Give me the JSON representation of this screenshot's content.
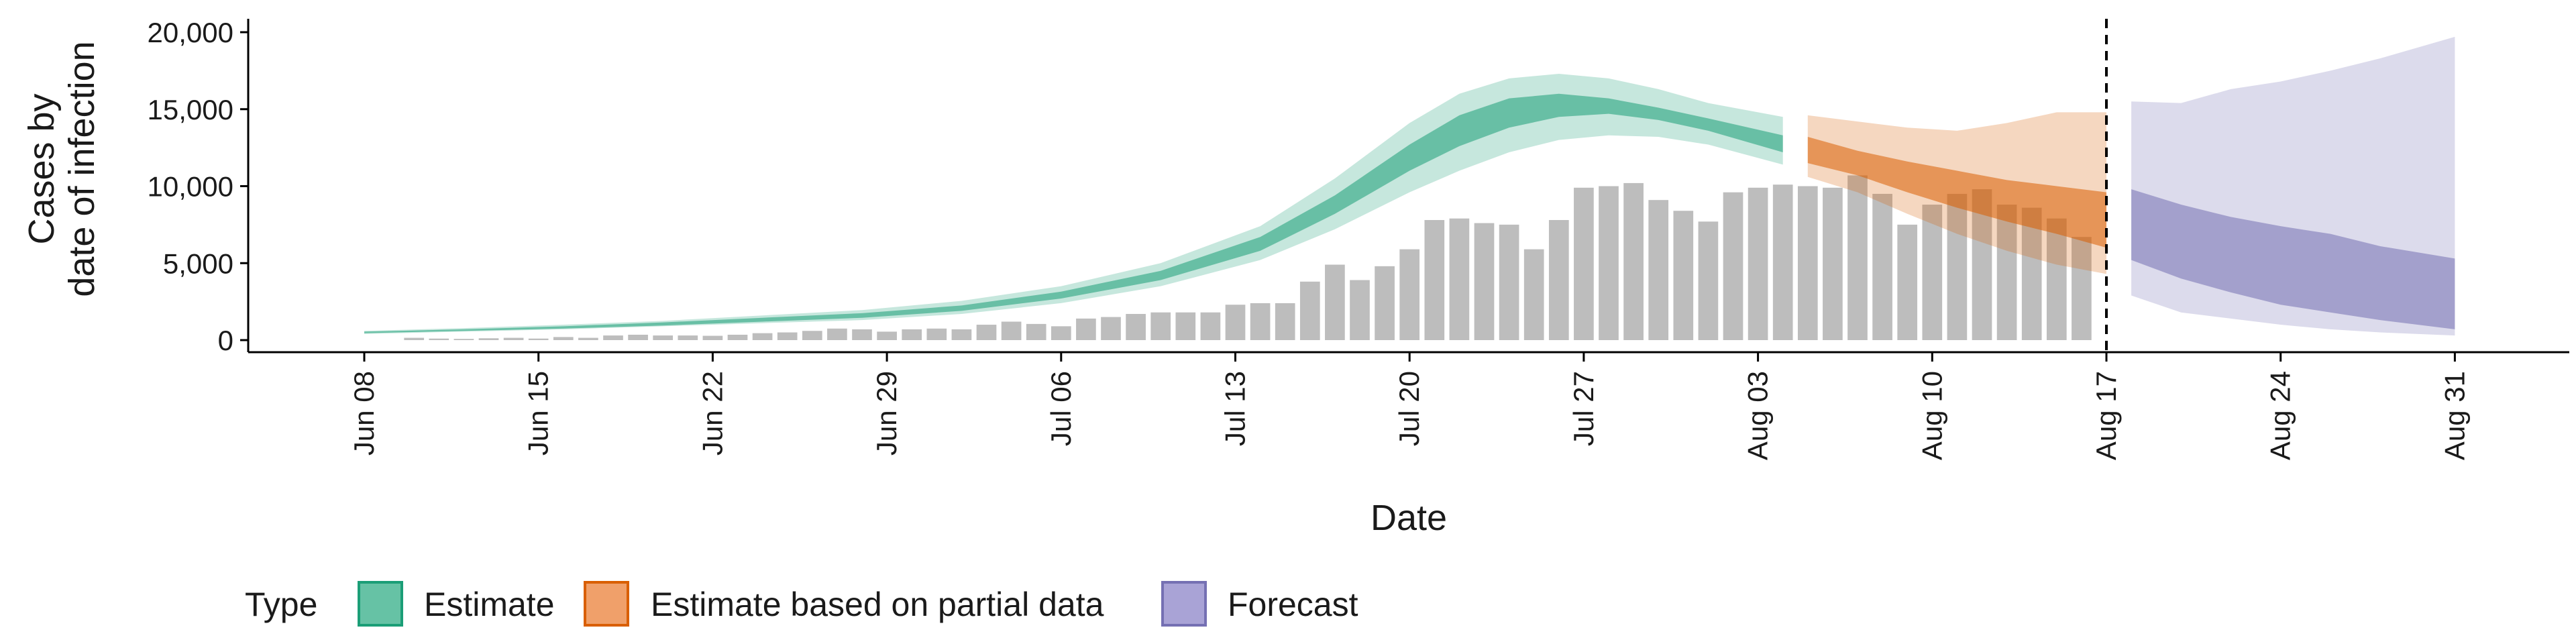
{
  "chart_data": {
    "type": "bar",
    "xlabel": "Date",
    "ylabel_lines": [
      "Cases by",
      "date of infection"
    ],
    "ylim": [
      0,
      20000
    ],
    "y_ticks": [
      0,
      5000,
      10000,
      15000,
      20000
    ],
    "y_tick_labels": [
      "0",
      "5,000",
      "10,000",
      "15,000",
      "20,000"
    ],
    "x_ticks": [
      "2020-06-08",
      "2020-06-15",
      "2020-06-22",
      "2020-06-29",
      "2020-07-06",
      "2020-07-13",
      "2020-07-20",
      "2020-07-27",
      "2020-08-03",
      "2020-08-10",
      "2020-08-17",
      "2020-08-24",
      "2020-08-31"
    ],
    "x_tick_labels": [
      "Jun 08",
      "Jun 15",
      "Jun 22",
      "Jun 29",
      "Jul 06",
      "Jul 13",
      "Jul 20",
      "Jul 27",
      "Aug 03",
      "Aug 10",
      "Aug 17",
      "Aug 24",
      "Aug 31"
    ],
    "vline_date": "2020-08-17",
    "bars_start_date": "2020-06-10",
    "bar_color": "#bdbdbd",
    "bars": [
      150,
      100,
      80,
      120,
      150,
      100,
      200,
      150,
      300,
      350,
      300,
      300,
      280,
      350,
      450,
      500,
      600,
      750,
      700,
      550,
      700,
      750,
      700,
      1000,
      1200,
      1050,
      900,
      1400,
      1500,
      1700,
      1800,
      1800,
      1800,
      2300,
      2400,
      2400,
      3800,
      4900,
      3900,
      4800,
      5900,
      7800,
      7900,
      7600,
      7500,
      5900,
      7800,
      9900,
      10000,
      10200,
      9100,
      8400,
      7700,
      9600,
      9900,
      10100,
      10000,
      9900,
      10700,
      9500,
      7500,
      8800,
      9500,
      9800,
      8800,
      8600,
      7900,
      6700
    ],
    "legend": {
      "title": "Type",
      "items": [
        {
          "label": "Estimate",
          "color": "#66c2a5",
          "border": "#1b9e77"
        },
        {
          "label": "Estimate based on partial data",
          "color": "#f0a06a",
          "border": "#d95f02"
        },
        {
          "label": "Forecast",
          "color": "#a9a3d6",
          "border": "#7570b3"
        }
      ]
    },
    "series": [
      {
        "name": "Estimate",
        "color": "#1b9e77",
        "x": [
          "2020-06-08",
          "2020-06-12",
          "2020-06-16",
          "2020-06-20",
          "2020-06-24",
          "2020-06-28",
          "2020-07-02",
          "2020-07-06",
          "2020-07-10",
          "2020-07-14",
          "2020-07-17",
          "2020-07-20",
          "2020-07-22",
          "2020-07-24",
          "2020-07-26",
          "2020-07-28",
          "2020-07-30",
          "2020-08-01",
          "2020-08-04"
        ],
        "outer_low": [
          400,
          550,
          700,
          900,
          1100,
          1300,
          1700,
          2400,
          3500,
          5200,
          7200,
          9600,
          11000,
          12200,
          13000,
          13300,
          13200,
          12700,
          11400
        ],
        "inner_low": [
          450,
          600,
          750,
          950,
          1200,
          1450,
          1900,
          2700,
          3900,
          5800,
          8200,
          11000,
          12600,
          13800,
          14500,
          14700,
          14300,
          13600,
          12200
        ],
        "inner_high": [
          550,
          700,
          900,
          1150,
          1450,
          1750,
          2250,
          3150,
          4500,
          6700,
          9400,
          12700,
          14600,
          15700,
          16000,
          15700,
          15100,
          14400,
          13300
        ],
        "outer_high": [
          600,
          780,
          1000,
          1250,
          1600,
          1950,
          2550,
          3500,
          5000,
          7400,
          10500,
          14100,
          16000,
          17000,
          17300,
          17000,
          16300,
          15400,
          14500
        ]
      },
      {
        "name": "Estimate based on partial data",
        "color": "#d95f02",
        "x": [
          "2020-08-05",
          "2020-08-07",
          "2020-08-09",
          "2020-08-11",
          "2020-08-13",
          "2020-08-15",
          "2020-08-17"
        ],
        "outer_low": [
          10600,
          9600,
          8200,
          6900,
          5800,
          4900,
          4300
        ],
        "inner_low": [
          11500,
          10700,
          9600,
          8600,
          7700,
          6900,
          6000
        ],
        "inner_high": [
          13200,
          12300,
          11600,
          11000,
          10400,
          10000,
          9600
        ],
        "outer_high": [
          14600,
          14200,
          13800,
          13600,
          14100,
          14800,
          14800
        ]
      },
      {
        "name": "Forecast",
        "color": "#7570b3",
        "x": [
          "2020-08-18",
          "2020-08-20",
          "2020-08-22",
          "2020-08-24",
          "2020-08-26",
          "2020-08-28",
          "2020-08-31"
        ],
        "outer_low": [
          2900,
          1800,
          1400,
          1000,
          700,
          500,
          300
        ],
        "inner_low": [
          5200,
          4000,
          3100,
          2300,
          1800,
          1300,
          700
        ],
        "inner_high": [
          9800,
          8800,
          8000,
          7400,
          6900,
          6100,
          5300
        ],
        "outer_high": [
          15500,
          15400,
          16300,
          16800,
          17500,
          18300,
          19700
        ]
      }
    ]
  }
}
